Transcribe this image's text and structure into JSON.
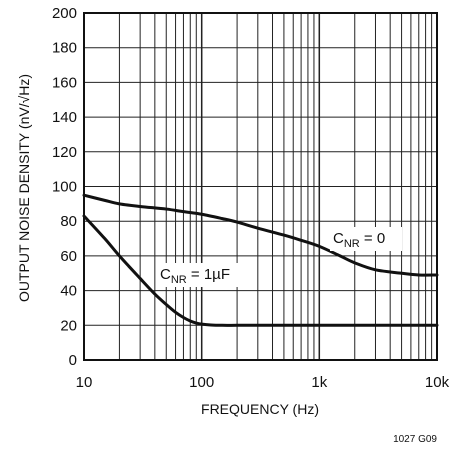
{
  "chart_data": {
    "type": "line",
    "xlabel": "FREQUENCY (Hz)",
    "ylabel": "OUTPUT NOISE DENSITY (nV/√Hz)",
    "x_scale": "log",
    "xlim": [
      10,
      10000
    ],
    "ylim": [
      0,
      200
    ],
    "x_ticks": [
      {
        "value": 10,
        "label": "10"
      },
      {
        "value": 100,
        "label": "100"
      },
      {
        "value": 1000,
        "label": "1k"
      },
      {
        "value": 10000,
        "label": "10k"
      }
    ],
    "y_ticks": [
      0,
      20,
      40,
      60,
      80,
      100,
      120,
      140,
      160,
      180,
      200
    ],
    "grid": true,
    "series": [
      {
        "name": "CNR = 0",
        "label_main": "C",
        "label_sub": "NR",
        "label_rest": " = 0",
        "x": [
          10,
          15,
          20,
          30,
          50,
          70,
          100,
          150,
          200,
          300,
          500,
          700,
          1000,
          1500,
          2000,
          3000,
          5000,
          7000,
          10000
        ],
        "y": [
          95,
          92,
          90,
          88.5,
          87,
          85.5,
          84,
          81.5,
          79.5,
          76,
          72,
          69,
          65.5,
          60,
          56,
          52,
          50,
          49,
          49
        ]
      },
      {
        "name": "CNR = 1µF",
        "label_main": "C",
        "label_sub": "NR",
        "label_rest": " = 1µF",
        "x": [
          10,
          15,
          20,
          30,
          40,
          50,
          60,
          70,
          80,
          90,
          100,
          120,
          150,
          200,
          300,
          500,
          1000,
          3000,
          10000
        ],
        "y": [
          83,
          70,
          60,
          47,
          38,
          32,
          27.5,
          24.5,
          22.5,
          21.3,
          20.7,
          20.2,
          20,
          20,
          20,
          20,
          20,
          20,
          20
        ]
      }
    ],
    "figure_id": "1027 G09"
  }
}
